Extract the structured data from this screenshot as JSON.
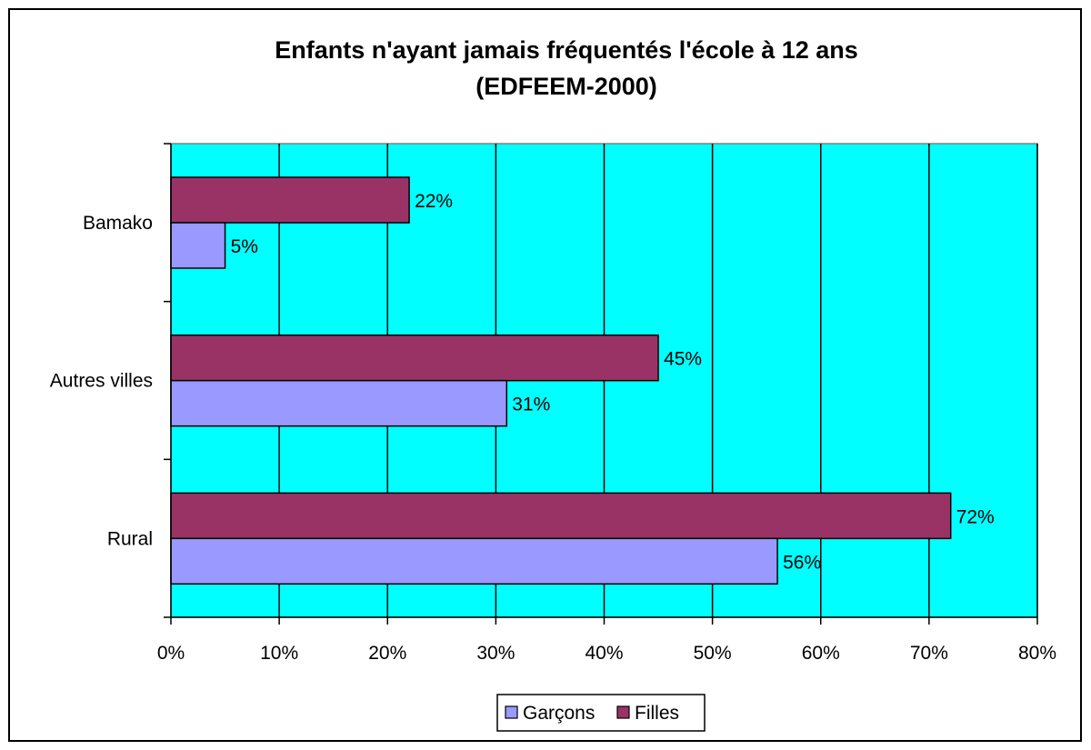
{
  "chart_data": {
    "type": "bar",
    "orientation": "horizontal",
    "title": "Enfants n'ayant jamais fréquentés l'école à 12 ans",
    "subtitle": "(EDFEEM-2000)",
    "categories": [
      "Bamako",
      "Autres villes",
      "Rural"
    ],
    "series": [
      {
        "name": "Filles",
        "values": [
          22,
          45,
          72
        ],
        "labels": [
          "22%",
          "45%",
          "72%"
        ],
        "color": "#993366"
      },
      {
        "name": "Garçons",
        "values": [
          5,
          31,
          56
        ],
        "labels": [
          "5%",
          "31%",
          "56%"
        ],
        "color": "#9999ff"
      }
    ],
    "xlim": [
      0,
      80
    ],
    "x_ticks": [
      0,
      10,
      20,
      30,
      40,
      50,
      60,
      70,
      80
    ],
    "x_tick_labels": [
      "0%",
      "10%",
      "20%",
      "30%",
      "40%",
      "50%",
      "60%",
      "70%",
      "80%"
    ],
    "grid": true,
    "plot_background": "#00ffff",
    "legend": {
      "placement": "bottom",
      "entries": [
        {
          "name": "Garçons",
          "color": "#9999ff"
        },
        {
          "name": "Filles",
          "color": "#993366"
        }
      ]
    }
  }
}
